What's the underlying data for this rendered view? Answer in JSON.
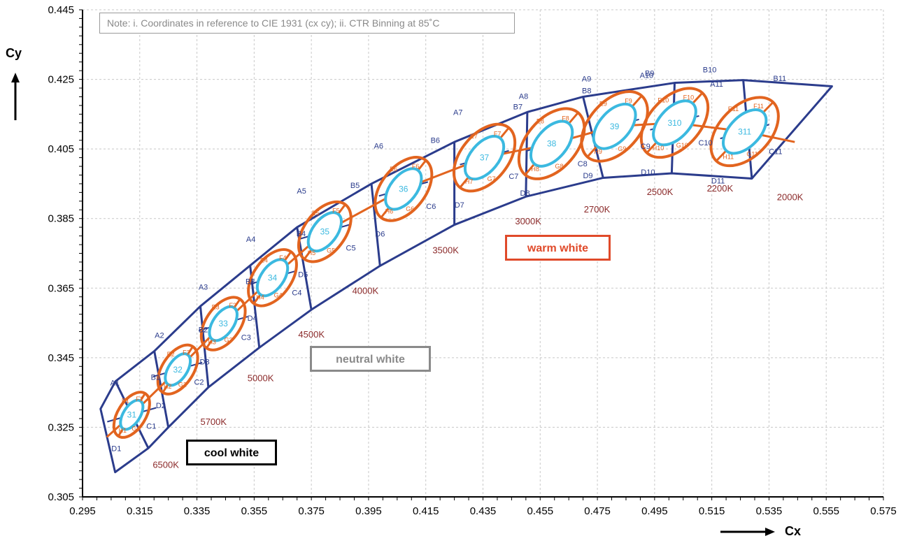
{
  "chart_data": {
    "type": "scatter",
    "title": "",
    "xlabel": "Cx",
    "ylabel": "Cy",
    "xlim": [
      0.295,
      0.575
    ],
    "ylim": [
      0.305,
      0.445
    ],
    "xticks": [
      "0.295",
      "0.315",
      "0.335",
      "0.355",
      "0.375",
      "0.395",
      "0.415",
      "0.435",
      "0.455",
      "0.475",
      "0.495",
      "0.515",
      "0.535",
      "0.555",
      "0.575"
    ],
    "yticks": [
      "0.305",
      "0.325",
      "0.345",
      "0.365",
      "0.385",
      "0.405",
      "0.425",
      "0.445"
    ],
    "grid": true,
    "colors": {
      "outline": "#2b3c8c",
      "ellipse_outer": "#e2641f",
      "ellipse_inner": "#3bb9e0",
      "cct": "#8b2a2a",
      "warm": "#e04a2a",
      "neutral": "#8a8a8a",
      "cool": "#000000"
    },
    "note": "Note: i. Coordinates in reference to CIE 1931 (cx cy); ii. CTR Binning at 85˚C",
    "regions": {
      "cool": "cool white",
      "neutral": "neutral white",
      "warm": "warm white"
    },
    "bins": [
      {
        "id": "1",
        "center": [
          0.3122,
          0.3286
        ],
        "cct": "6500K",
        "labels": {
          "A": "A1",
          "B": "B1",
          "C": "C1",
          "D": "D1"
        },
        "sub": {
          "E": "E1",
          "F": "F1",
          "G": "G1",
          "H": "H1"
        },
        "center_label": "31"
      },
      {
        "id": "2",
        "center": [
          0.3283,
          0.3416
        ],
        "cct": "5700K",
        "labels": {
          "A": "A2",
          "B": "B2",
          "C": "C2",
          "D": "D2"
        },
        "sub": {
          "E": "E2",
          "F": "F2",
          "G": "G2",
          "H": "H2"
        },
        "center_label": "32"
      },
      {
        "id": "3",
        "center": [
          0.3442,
          0.3548
        ],
        "cct": "5000K",
        "labels": {
          "A": "A3",
          "B": "B3",
          "C": "C3",
          "D": "D3"
        },
        "sub": {
          "E": "E3",
          "F": "F3",
          "G": "G3",
          "H": "H3"
        },
        "center_label": "33"
      },
      {
        "id": "4",
        "center": [
          0.3614,
          0.368
        ],
        "cct": "4500K",
        "labels": {
          "A": "A4",
          "B": "B4",
          "C": "C4",
          "D": "D4"
        },
        "sub": {
          "E": "E4",
          "F": "F4",
          "G": "G4",
          "H": "H4"
        },
        "center_label": "34"
      },
      {
        "id": "5",
        "center": [
          0.3797,
          0.3812
        ],
        "cct": "4000K",
        "labels": {
          "A": "A5",
          "B": "B5",
          "C": "C5",
          "D": "D5"
        },
        "sub": {
          "E": "E5",
          "F": "F5",
          "G": "G5",
          "H": "H5"
        },
        "center_label": "35"
      },
      {
        "id": "6",
        "center": [
          0.4072,
          0.3935
        ],
        "cct": "3500K",
        "labels": {
          "A": "A6",
          "B": "B6",
          "C": "C6",
          "D": "D6"
        },
        "sub": {
          "E": "E6",
          "F": "F6",
          "G": "G6",
          "H": "H6"
        },
        "center_label": "36"
      },
      {
        "id": "7",
        "center": [
          0.4355,
          0.4025
        ],
        "cct": "3000K",
        "labels": {
          "A": "A7",
          "B": "B7",
          "C": "C7",
          "D": "D7"
        },
        "sub": {
          "E": "E7",
          "F": "F7",
          "G": "G7",
          "H": "H7"
        },
        "center_label": "37"
      },
      {
        "id": "8",
        "center": [
          0.459,
          0.4065
        ],
        "cct": "2700K",
        "labels": {
          "A": "A8",
          "B": "B8",
          "C": "C8",
          "D": "D8"
        },
        "sub": {
          "E": "E8",
          "F": "F8",
          "G": "G8",
          "H": "H8"
        },
        "center_label": "38"
      },
      {
        "id": "9",
        "center": [
          0.481,
          0.4115
        ],
        "cct": "2500K",
        "labels": {
          "A": "A9",
          "B": "B9",
          "C": "C9",
          "D": "D9"
        },
        "sub": {
          "E": "E9",
          "F": "F9",
          "G": "G9",
          "H": "H9"
        },
        "center_label": "39"
      },
      {
        "id": "10",
        "center": [
          0.502,
          0.4125
        ],
        "cct": "2200K",
        "labels": {
          "A": "A10",
          "B": "B10",
          "C": "C10",
          "D": "D10"
        },
        "sub": {
          "E": "E10",
          "F": "F10",
          "G": "G10",
          "H": "H10"
        },
        "center_label": "310"
      },
      {
        "id": "11",
        "center": [
          0.5265,
          0.41
        ],
        "cct": "2000K",
        "labels": {
          "A": "A11",
          "B": "B11",
          "C": "C11",
          "D": "D11"
        },
        "sub": {
          "E": "E11",
          "F": "F11",
          "G": "G11",
          "H": "H11"
        },
        "center_label": "311"
      }
    ],
    "outline_top": [
      [
        0.3013,
        0.3303
      ],
      [
        0.3065,
        0.3382
      ],
      [
        0.3201,
        0.3469
      ],
      [
        0.3362,
        0.3598
      ],
      [
        0.3536,
        0.3715
      ],
      [
        0.37,
        0.3825
      ],
      [
        0.396,
        0.395
      ],
      [
        0.425,
        0.407
      ],
      [
        0.4505,
        0.4156
      ],
      [
        0.47,
        0.42
      ],
      [
        0.502,
        0.424
      ],
      [
        0.526,
        0.4248
      ],
      [
        0.557,
        0.423
      ]
    ],
    "outline_bottom": [
      [
        0.3064,
        0.3121
      ],
      [
        0.318,
        0.319
      ],
      [
        0.325,
        0.325
      ],
      [
        0.339,
        0.3365
      ],
      [
        0.3568,
        0.3479
      ],
      [
        0.375,
        0.3588
      ],
      [
        0.399,
        0.3714
      ],
      [
        0.425,
        0.3832
      ],
      [
        0.45,
        0.3913
      ],
      [
        0.477,
        0.3967
      ],
      [
        0.501,
        0.398
      ],
      [
        0.529,
        0.3965
      ]
    ],
    "midline": [
      [
        0.3035,
        0.3222
      ],
      [
        0.3122,
        0.3286
      ],
      [
        0.3283,
        0.3416
      ],
      [
        0.3442,
        0.3548
      ],
      [
        0.3614,
        0.368
      ],
      [
        0.3797,
        0.3812
      ],
      [
        0.4072,
        0.3935
      ],
      [
        0.4355,
        0.4025
      ],
      [
        0.459,
        0.4065
      ],
      [
        0.481,
        0.4115
      ],
      [
        0.502,
        0.4125
      ],
      [
        0.5265,
        0.41
      ],
      [
        0.544,
        0.407
      ]
    ]
  }
}
